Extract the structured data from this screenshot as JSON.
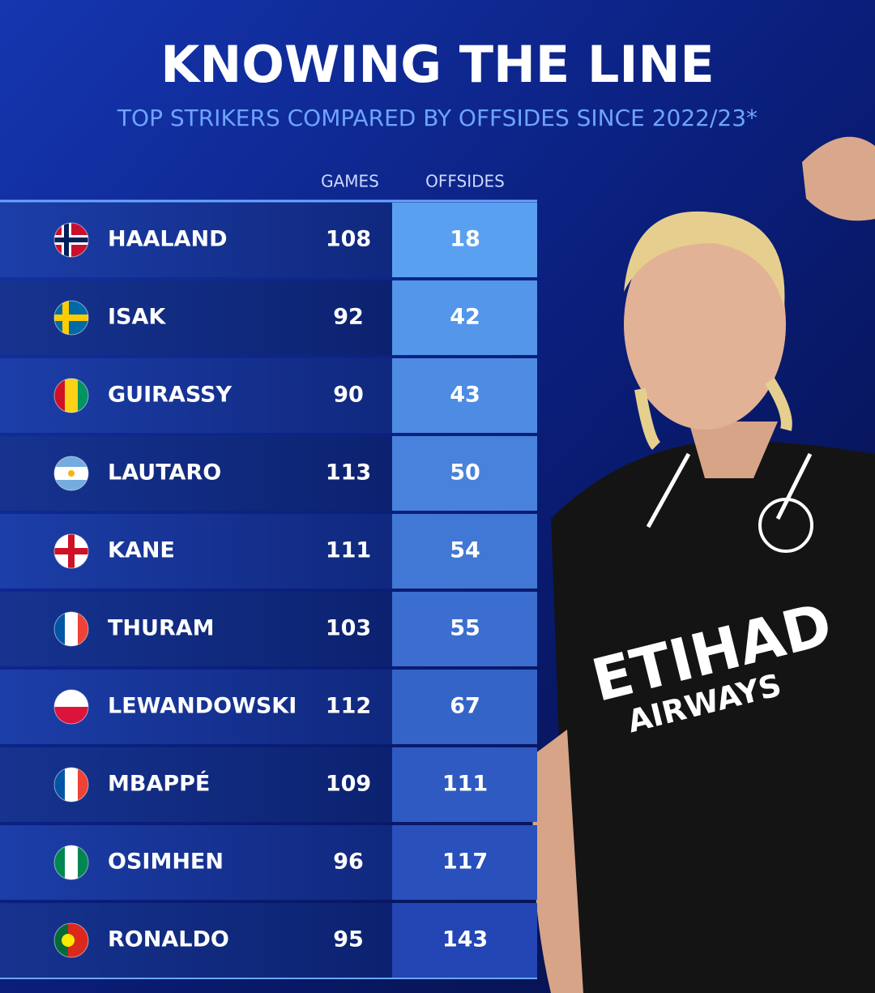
{
  "header": {
    "title": "KNOWING THE LINE",
    "subtitle": "TOP STRIKERS COMPARED BY OFFSIDES SINCE 2022/23*"
  },
  "table": {
    "columns": [
      "GAMES",
      "OFFSIDES"
    ],
    "rows": [
      [
        "HAALAND",
        "108",
        "18"
      ],
      [
        "ISAK",
        "92",
        "42"
      ],
      [
        "GUIRASSY",
        "90",
        "43"
      ],
      [
        "LAUTARO",
        "113",
        "50"
      ],
      [
        "KANE",
        "111",
        "54"
      ],
      [
        "THURAM",
        "103",
        "55"
      ],
      [
        "LEWANDOWSKI",
        "112",
        "67"
      ],
      [
        "MBAPPÉ",
        "109",
        "111"
      ],
      [
        "OSIMHEN",
        "96",
        "117"
      ],
      [
        "RONALDO",
        "95",
        "143"
      ]
    ]
  },
  "photo": {
    "sponsor": [
      "ETIHAD",
      "AIRWAYS"
    ]
  }
}
